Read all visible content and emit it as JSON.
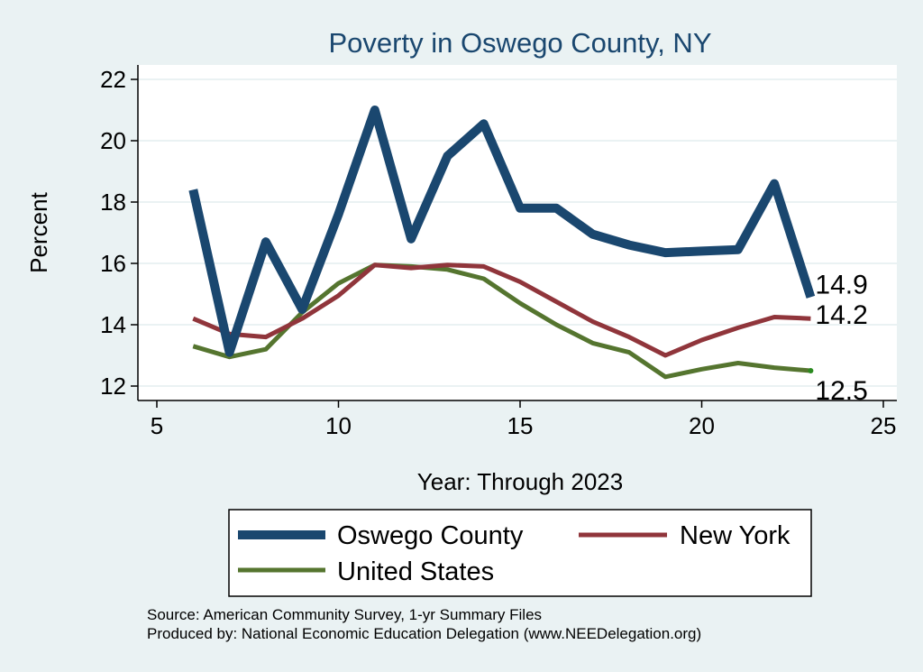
{
  "chart_data": {
    "type": "line",
    "title": "Poverty in Oswego County, NY",
    "xlabel": "Year: Through 2023",
    "ylabel": "Percent",
    "xlim": [
      5,
      25
    ],
    "ylim": [
      11.5,
      22.3
    ],
    "xticks": [
      5,
      10,
      15,
      20,
      25
    ],
    "yticks": [
      12,
      14,
      16,
      18,
      20,
      22
    ],
    "grid": true,
    "series": [
      {
        "name": "Oswego County",
        "color": "#1a476f",
        "x": [
          6,
          7,
          8,
          9,
          10,
          11,
          12,
          13,
          14,
          15,
          16,
          17,
          18,
          19,
          20,
          21,
          22,
          23
        ],
        "y": [
          18.4,
          13.1,
          16.7,
          14.5,
          17.6,
          21.0,
          16.8,
          19.5,
          20.55,
          17.8,
          17.8,
          16.95,
          16.6,
          16.35,
          16.4,
          16.45,
          18.6,
          14.9
        ],
        "end_label": "14.9"
      },
      {
        "name": "New York",
        "color": "#90353b",
        "x": [
          6,
          7,
          8,
          9,
          10,
          11,
          12,
          13,
          14,
          15,
          16,
          17,
          18,
          19,
          20,
          21,
          22,
          23
        ],
        "y": [
          14.2,
          13.7,
          13.6,
          14.2,
          14.95,
          15.95,
          15.85,
          15.95,
          15.9,
          15.4,
          14.75,
          14.1,
          13.6,
          13.0,
          13.5,
          13.9,
          14.25,
          14.2
        ],
        "end_label": "14.2"
      },
      {
        "name": "United States",
        "color": "#55752f",
        "x": [
          6,
          7,
          8,
          9,
          10,
          11,
          12,
          13,
          14,
          15,
          16,
          17,
          18,
          19,
          20,
          21,
          22,
          23
        ],
        "y": [
          13.3,
          12.95,
          13.2,
          14.4,
          15.35,
          15.95,
          15.9,
          15.8,
          15.5,
          14.7,
          14.0,
          13.4,
          13.1,
          12.3,
          12.55,
          12.75,
          12.6,
          12.5
        ],
        "end_label": "12.5"
      }
    ],
    "legend": {
      "placement": "bottom",
      "entries": [
        "Oswego County",
        "New York",
        "United States"
      ]
    },
    "notes": [
      "Source: American Community Survey, 1-yr Summary Files",
      "Produced by: National Economic Education Delegation (www.NEEDelegation.org)"
    ]
  }
}
